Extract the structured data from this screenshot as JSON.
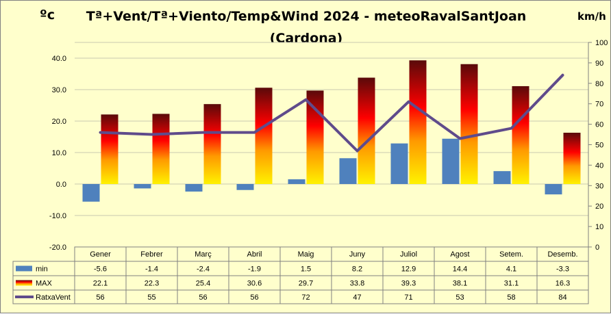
{
  "chart_data": {
    "type": "bar",
    "title_line1": "Tª+Vent/Tª+Viento/Temp&Wind 2024 - meteoRavalSantJoan",
    "title_line2": "(Cardona)",
    "ylabel_left": "ºc",
    "ylabel_right": "km/h",
    "categories": [
      "Gener",
      "Febrer",
      "Març",
      "Abril",
      "Maig",
      "Juny",
      "Juliol",
      "Agost",
      "Setem.",
      "Desemb."
    ],
    "ylim_left": [
      -20,
      45
    ],
    "yticks_left": [
      "40.0",
      "30.0",
      "20.0",
      "10.0",
      "0.0",
      "-10.0",
      "-20.0"
    ],
    "ylim_right": [
      0,
      100
    ],
    "yticks_right": [
      "100",
      "90",
      "80",
      "70",
      "60",
      "50",
      "40",
      "30",
      "20",
      "10",
      "0"
    ],
    "grid": true,
    "legend": "data table below chart",
    "series": [
      {
        "name": "min",
        "kind": "bar",
        "axis": "left",
        "color": "#4F81BD",
        "values": [
          -5.6,
          -1.4,
          -2.4,
          -1.9,
          1.5,
          8.2,
          12.9,
          14.4,
          4.1,
          -3.3
        ],
        "labels": [
          "-5.6",
          "-1.4",
          "-2.4",
          "-1.9",
          "1.5",
          "8.2",
          "12.9",
          "14.4",
          "4.1",
          "-3.3"
        ]
      },
      {
        "name": "MAX",
        "kind": "bar",
        "axis": "left",
        "color": "#FF0000",
        "values": [
          22.1,
          22.3,
          25.4,
          30.6,
          29.7,
          33.8,
          39.3,
          38.1,
          31.1,
          16.3
        ],
        "labels": [
          "22.1",
          "22.3",
          "25.4",
          "30.6",
          "29.7",
          "33.8",
          "39.3",
          "38.1",
          "31.1",
          "16.3"
        ]
      },
      {
        "name": "RatxaVent",
        "kind": "line",
        "axis": "right",
        "color": "#5F4B8B",
        "values": [
          56,
          55,
          56,
          56,
          72,
          47,
          71,
          53,
          58,
          84
        ],
        "labels": [
          "56",
          "55",
          "56",
          "56",
          "72",
          "47",
          "71",
          "53",
          "58",
          "84"
        ]
      }
    ]
  }
}
